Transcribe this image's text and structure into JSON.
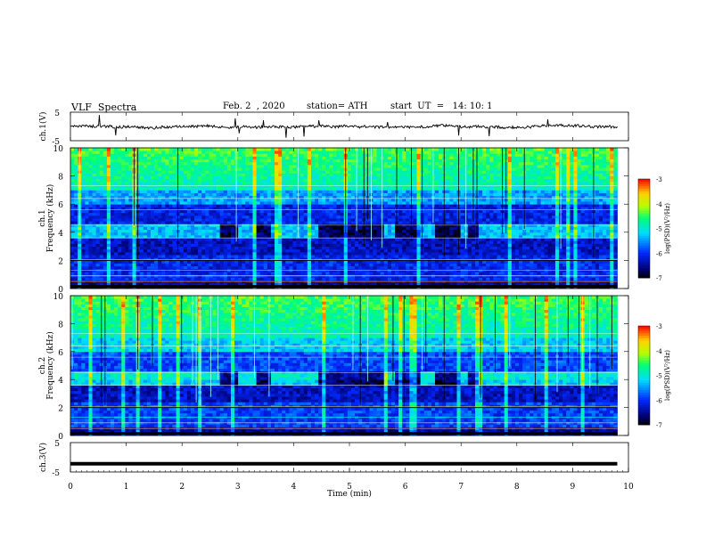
{
  "header": {
    "title": "VLF  Spectra",
    "date": "Feb. 2  , 2020",
    "station": "station= ATH",
    "start": "start  UT  =   14: 10: 1"
  },
  "colors": {
    "background": "#ffffff",
    "spectrogram_low": "#00007f",
    "spectrogram_mid": "#00e0e0",
    "spectrogram_high": "#ff0000"
  },
  "chart_data": [
    {
      "type": "line",
      "name": "ch1-waveform",
      "ylabel": "ch.1(V)",
      "ylim": [
        -5,
        5
      ],
      "yticks": [
        "5",
        "-5"
      ],
      "xlim": [
        0,
        10
      ],
      "note": "noisy waveform centred near 0 V"
    },
    {
      "type": "heatmap",
      "name": "ch1-spectrogram",
      "ylabel_line1": "ch.1",
      "ylabel_line2": "Frequency  (kHz)",
      "ylim": [
        0,
        10
      ],
      "yticks": [
        "0",
        "2",
        "4",
        "6",
        "8",
        "10"
      ],
      "colorbar_label": "log(PSD)(V²/Hz)",
      "colorbar_ticks": [
        "-3",
        "-4",
        "-5",
        "-6",
        "-7"
      ],
      "colorbar_range": [
        -7,
        -3
      ]
    },
    {
      "type": "heatmap",
      "name": "ch2-spectrogram",
      "ylabel_line1": "ch.2",
      "ylabel_line2": "Frequency  (kHz)",
      "ylim": [
        0,
        10
      ],
      "yticks": [
        "0",
        "2",
        "4",
        "6",
        "8",
        "10"
      ],
      "colorbar_label": "log(PSD)(V²/Hz)",
      "colorbar_ticks": [
        "-3",
        "-4",
        "-5",
        "-6",
        "-7"
      ],
      "colorbar_range": [
        -7,
        -3
      ]
    },
    {
      "type": "line",
      "name": "ch3-waveform",
      "ylabel": "ch.3(V)",
      "ylim": [
        -5,
        5
      ],
      "yticks": [
        "5",
        "-5"
      ],
      "xlim": [
        0,
        10
      ],
      "note": "flat line near -2 V"
    }
  ],
  "xaxis": {
    "label": "Time  (min)",
    "ticks": [
      "0",
      "1",
      "2",
      "3",
      "4",
      "5",
      "6",
      "7",
      "8",
      "9",
      "10"
    ],
    "data_end": 9.8
  }
}
